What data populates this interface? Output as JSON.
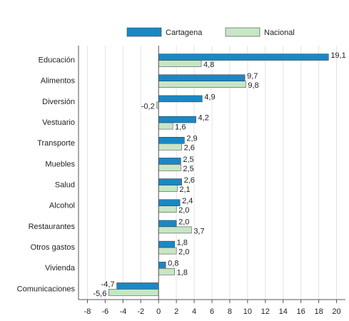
{
  "chart_data": {
    "type": "hbar",
    "categories": [
      "Educación",
      "Alimentos",
      "Diversión",
      "Vestuario",
      "Transporte",
      "Muebles",
      "Salud",
      "Alcohol",
      "Restaurantes",
      "Otros gastos",
      "Vivienda",
      "Comunicaciones"
    ],
    "series": [
      {
        "name": "Cartagena",
        "color": "#1a88c4",
        "values": [
          19.1,
          9.7,
          4.9,
          4.2,
          2.9,
          2.5,
          2.6,
          2.4,
          2.0,
          1.8,
          0.8,
          -4.7
        ],
        "value_labels": [
          "19,1",
          "9,7",
          "4,9",
          "4,2",
          "2,9",
          "2,5",
          "2,6",
          "2,4",
          "2,0",
          "1,8",
          "0,8",
          "-4,7"
        ]
      },
      {
        "name": "Nacional",
        "color": "#c7e6c5",
        "values": [
          4.8,
          9.8,
          -0.2,
          1.6,
          2.6,
          2.5,
          2.1,
          2.0,
          3.7,
          2.0,
          1.8,
          -5.6
        ],
        "value_labels": [
          "4,8",
          "9,8",
          "-0,2",
          "1,6",
          "2,6",
          "2,5",
          "2,1",
          "2,0",
          "3,7",
          "2,0",
          "1,8",
          "-5,6"
        ]
      }
    ],
    "xlim": [
      -9,
      21
    ],
    "xticks": [
      -8,
      -6,
      -4,
      -2,
      0,
      2,
      4,
      6,
      8,
      10,
      12,
      14,
      16,
      18,
      20
    ],
    "grid": true,
    "legend": "top"
  }
}
